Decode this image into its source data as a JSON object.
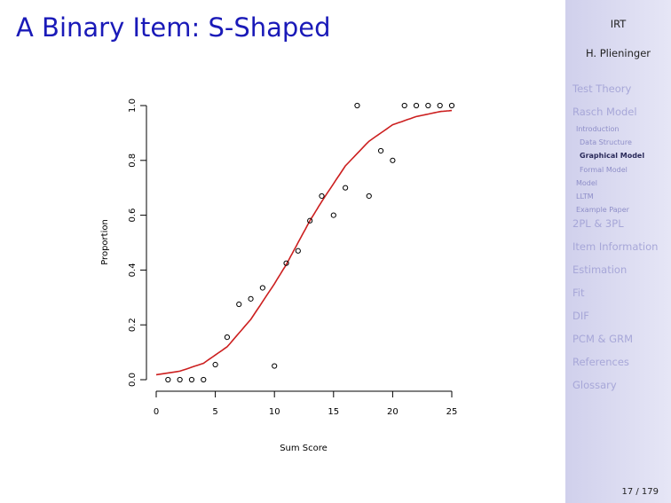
{
  "slide": {
    "title": "A Binary Item: S-Shaped"
  },
  "sidebar": {
    "title": "IRT",
    "author": "H. Plieninger",
    "sections": [
      {
        "label": "Test Theory",
        "subs": []
      },
      {
        "label": "Rasch Model",
        "subs": [
          {
            "label": "Introduction",
            "level": 1,
            "active": false
          },
          {
            "label": "Data Structure",
            "level": 2,
            "active": false
          },
          {
            "label": "Graphical Model",
            "level": 2,
            "active": true
          },
          {
            "label": "Formal Model",
            "level": 2,
            "active": false
          },
          {
            "label": "Model",
            "level": 1,
            "active": false
          },
          {
            "label": "LLTM",
            "level": 1,
            "active": false
          },
          {
            "label": "Example Paper",
            "level": 1,
            "active": false
          }
        ]
      },
      {
        "label": "2PL & 3PL",
        "subs": []
      },
      {
        "label": "Item Information",
        "subs": []
      },
      {
        "label": "Estimation",
        "subs": []
      },
      {
        "label": "Fit",
        "subs": []
      },
      {
        "label": "DIF",
        "subs": []
      },
      {
        "label": "PCM & GRM",
        "subs": []
      },
      {
        "label": "References",
        "subs": []
      },
      {
        "label": "Glossary",
        "subs": []
      }
    ]
  },
  "page": {
    "number": "17 / 179"
  },
  "colors": {
    "title": "#1a1ab8",
    "curve": "#cc1f1f",
    "points": "#000000",
    "sidebar_text": "#a7a7d8"
  },
  "chart_data": {
    "type": "scatter",
    "xlabel": "Sum Score",
    "ylabel": "Proportion",
    "xlim": [
      0,
      25
    ],
    "ylim": [
      0,
      1
    ],
    "x_ticks": [
      "0",
      "5",
      "10",
      "15",
      "20",
      "25"
    ],
    "y_ticks": [
      "0.0",
      "0.2",
      "0.4",
      "0.6",
      "0.8",
      "1.0"
    ],
    "points": [
      {
        "x": 1,
        "y": 0.0
      },
      {
        "x": 2,
        "y": 0.0
      },
      {
        "x": 3,
        "y": 0.0
      },
      {
        "x": 4,
        "y": 0.0
      },
      {
        "x": 5,
        "y": 0.055
      },
      {
        "x": 6,
        "y": 0.155
      },
      {
        "x": 7,
        "y": 0.275
      },
      {
        "x": 8,
        "y": 0.295
      },
      {
        "x": 9,
        "y": 0.335
      },
      {
        "x": 10,
        "y": 0.05
      },
      {
        "x": 11,
        "y": 0.425
      },
      {
        "x": 12,
        "y": 0.47
      },
      {
        "x": 13,
        "y": 0.58
      },
      {
        "x": 14,
        "y": 0.67
      },
      {
        "x": 15,
        "y": 0.6
      },
      {
        "x": 16,
        "y": 0.7
      },
      {
        "x": 17,
        "y": 1.0
      },
      {
        "x": 18,
        "y": 0.67
      },
      {
        "x": 19,
        "y": 0.835
      },
      {
        "x": 20,
        "y": 0.8
      },
      {
        "x": 21,
        "y": 1.0
      },
      {
        "x": 22,
        "y": 1.0
      },
      {
        "x": 23,
        "y": 1.0
      },
      {
        "x": 24,
        "y": 1.0
      },
      {
        "x": 25,
        "y": 1.0
      }
    ],
    "curve": {
      "type": "logistic",
      "x": [
        0,
        2,
        4,
        6,
        8,
        10,
        11,
        12,
        13,
        14,
        16,
        18,
        20,
        22,
        24,
        25
      ],
      "y": [
        0.018,
        0.031,
        0.06,
        0.12,
        0.22,
        0.35,
        0.42,
        0.5,
        0.58,
        0.65,
        0.78,
        0.87,
        0.93,
        0.96,
        0.978,
        0.982
      ]
    }
  }
}
